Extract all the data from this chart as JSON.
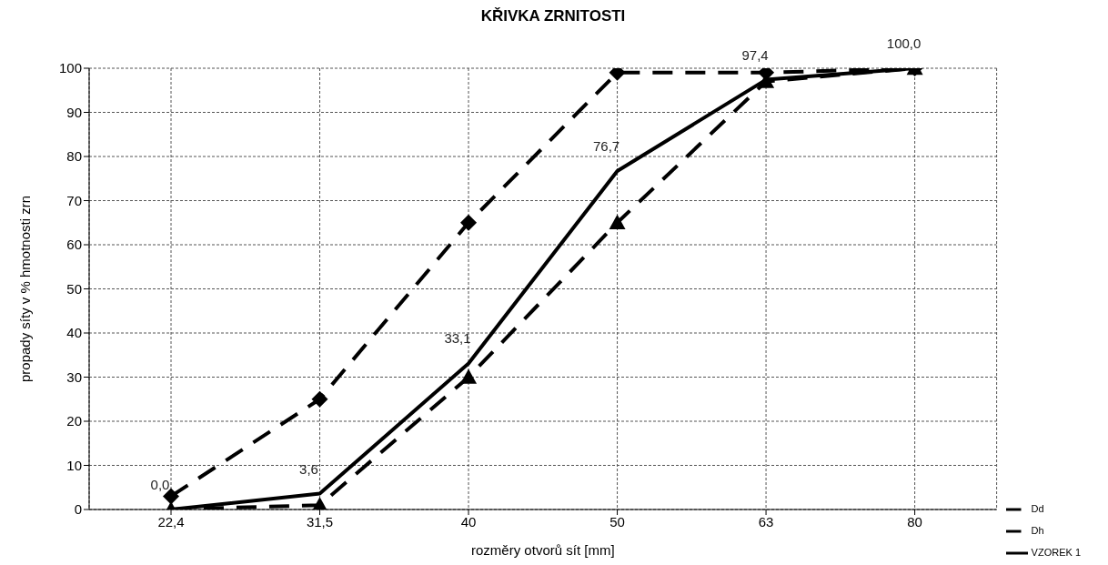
{
  "chart_data": {
    "type": "line",
    "title": "KŘIVKA ZRNITOSTI",
    "xlabel": "rozměry otvorů sít [mm]",
    "ylabel": "propady síty v % hmotnosti zrn",
    "categories": [
      "22,4",
      "31,5",
      "40",
      "50",
      "63",
      "80"
    ],
    "series": [
      {
        "name": "Dd",
        "color": "#000000",
        "values": [
          0,
          1,
          30,
          65,
          97,
          100
        ],
        "marker": "triangle",
        "line_style": "dashed"
      },
      {
        "name": "Dh",
        "color": "#000000",
        "values": [
          3,
          25,
          65,
          99,
          99,
          100
        ],
        "marker": "diamond",
        "line_style": "dashed"
      },
      {
        "name": "VZOREK 1",
        "color": "#000000",
        "values": [
          0,
          3.6,
          33.1,
          76.7,
          97.4,
          100
        ],
        "marker": "none",
        "line_style": "solid",
        "value_labels": [
          "0,0",
          "3,6",
          "33,1",
          "76,7",
          "97,4",
          "100,0"
        ]
      }
    ],
    "ylim": [
      0,
      100
    ],
    "yticks": [
      0,
      10,
      20,
      30,
      40,
      50,
      60,
      70,
      80,
      90,
      100
    ],
    "grid": true,
    "legend": "bottom right"
  }
}
